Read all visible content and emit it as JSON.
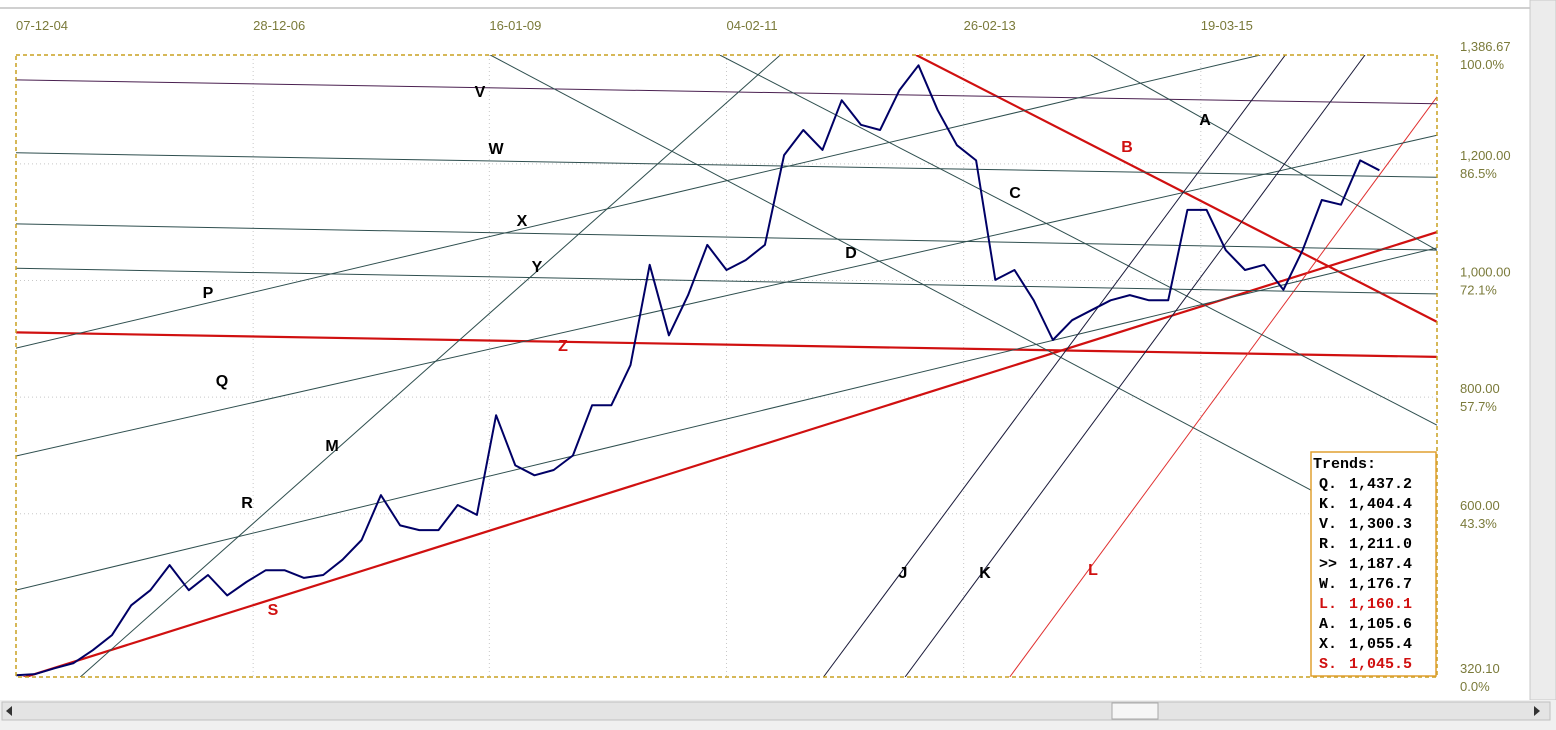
{
  "chart_data": {
    "type": "line",
    "xlim": [
      0,
      148
    ],
    "xticks": [
      {
        "value": 0,
        "label": "07-12-04"
      },
      {
        "value": 24.7,
        "label": "28-12-06"
      },
      {
        "value": 49.3,
        "label": "16-01-09"
      },
      {
        "value": 74,
        "label": "04-02-11"
      },
      {
        "value": 98.7,
        "label": "26-02-13"
      },
      {
        "value": 123.4,
        "label": "19-03-15"
      }
    ],
    "ylim": [
      320.1,
      1386.67
    ],
    "yticks": [
      {
        "value": 1386.67,
        "label": "1,386.67"
      },
      {
        "value": 1200,
        "label": "1,200.00"
      },
      {
        "value": 1000,
        "label": "1,000.00"
      },
      {
        "value": 800,
        "label": "800.00"
      },
      {
        "value": 600,
        "label": "600.00"
      },
      {
        "value": 320.1,
        "label": "320.10"
      }
    ],
    "ytick_percent": [
      "100.0%",
      "86.5%",
      "72.1%",
      "57.7%",
      "43.3%",
      "0.0%"
    ],
    "grid": true,
    "color": "#000066",
    "x": [
      0,
      2,
      4,
      6,
      8,
      10,
      12,
      14,
      16,
      18,
      20,
      22,
      24,
      26,
      28,
      30,
      32,
      34,
      36,
      38,
      40,
      42,
      44,
      46,
      48,
      50,
      52,
      54,
      56,
      58,
      60,
      62,
      64,
      66,
      68,
      70,
      72,
      74,
      76,
      78,
      80,
      82,
      84,
      86,
      88,
      90,
      92,
      94,
      96,
      98,
      100,
      102,
      104,
      106,
      108,
      110,
      112,
      114,
      116,
      118,
      120,
      122,
      124,
      126,
      128,
      130,
      132,
      134,
      136,
      138,
      140,
      142
    ],
    "values": [
      323,
      325,
      335,
      344,
      366,
      392,
      443,
      469,
      512,
      469,
      495,
      460,
      483,
      503,
      503,
      490,
      495,
      521,
      555,
      632,
      580,
      572,
      572,
      615,
      598,
      769,
      683,
      666,
      675,
      700,
      786,
      786,
      855,
      1027,
      906,
      975,
      1061,
      1018,
      1035,
      1061,
      1215,
      1258,
      1224,
      1309,
      1267,
      1258,
      1326,
      1369,
      1292,
      1232,
      1206,
      1001,
      1018,
      966,
      898,
      932,
      949,
      966,
      975,
      966,
      966,
      1121,
      1121,
      1052,
      1018,
      1027,
      984,
      1052,
      1138,
      1130,
      1206,
      1189
    ],
    "trendlines": [
      {
        "label": "S",
        "color": "#d01010",
        "points": [
          [
            0,
            315
          ],
          [
            148,
            1083
          ]
        ]
      },
      {
        "label": "Z",
        "color": "#d01010",
        "points": [
          [
            0,
            911
          ],
          [
            148,
            869
          ]
        ]
      },
      {
        "label": "B",
        "color": "#d01010",
        "points": [
          [
            93.75,
            1386.67
          ],
          [
            148,
            929
          ]
        ]
      },
      {
        "label": "L",
        "color": "#e03030",
        "points": [
          [
            103.5,
            320.1
          ],
          [
            148,
            1315
          ]
        ]
      },
      {
        "label": "V",
        "color": "#4a2050",
        "points": [
          [
            0,
            1344
          ],
          [
            148,
            1303
          ]
        ]
      },
      {
        "label": "W",
        "color": "#2f4f4f",
        "points": [
          [
            0,
            1219
          ],
          [
            148,
            1177
          ]
        ]
      },
      {
        "label": "X",
        "color": "#2f4f4f",
        "points": [
          [
            0,
            1097
          ],
          [
            148,
            1052
          ]
        ]
      },
      {
        "label": "Y",
        "color": "#2f4f4f",
        "points": [
          [
            0,
            1021
          ],
          [
            148,
            977
          ]
        ]
      },
      {
        "label": "P",
        "color": "#2f4f4f",
        "points": [
          [
            0,
            884
          ],
          [
            129.6,
            1386.67
          ]
        ]
      },
      {
        "label": "Q",
        "color": "#2f4f4f",
        "points": [
          [
            0,
            699
          ],
          [
            148,
            1249
          ]
        ]
      },
      {
        "label": "R",
        "color": "#2f4f4f",
        "points": [
          [
            0,
            469
          ],
          [
            148,
            1056
          ]
        ]
      },
      {
        "label": "M",
        "color": "#2f4f4f",
        "points": [
          [
            6.7,
            320.1
          ],
          [
            79.6,
            1386.67
          ]
        ]
      },
      {
        "label": "D",
        "color": "#2f4f4f",
        "points": [
          [
            49.4,
            1386.67
          ],
          [
            148,
            526
          ]
        ]
      },
      {
        "label": "C",
        "color": "#2f4f4f",
        "points": [
          [
            73.3,
            1386.67
          ],
          [
            148,
            752
          ]
        ]
      },
      {
        "label": "A",
        "color": "#2f4f4f",
        "points": [
          [
            111.9,
            1386.67
          ],
          [
            148,
            1052
          ]
        ]
      },
      {
        "label": "J",
        "color": "#1a1a3a",
        "points": [
          [
            84.1,
            320.1
          ],
          [
            132.2,
            1386.67
          ]
        ]
      },
      {
        "label": "K",
        "color": "#1a1a3a",
        "points": [
          [
            92.6,
            320.1
          ],
          [
            140.5,
            1386.67
          ]
        ]
      }
    ],
    "trends": {
      "title": "Trends:",
      "rows": [
        {
          "key": "Q.",
          "value": "1,437.2",
          "color": "#000000"
        },
        {
          "key": "K.",
          "value": "1,404.4",
          "color": "#000000"
        },
        {
          "key": "V.",
          "value": "1,300.3",
          "color": "#000000"
        },
        {
          "key": "R.",
          "value": "1,211.0",
          "color": "#000000"
        },
        {
          "key": ">>",
          "value": "1,187.4",
          "color": "#000000"
        },
        {
          "key": "W.",
          "value": "1,176.7",
          "color": "#000000"
        },
        {
          "key": "L.",
          "value": "1,160.1",
          "color": "#d01010"
        },
        {
          "key": "A.",
          "value": "1,105.6",
          "color": "#000000"
        },
        {
          "key": "X.",
          "value": "1,055.4",
          "color": "#000000"
        },
        {
          "key": "S.",
          "value": "1,045.5",
          "color": "#d01010"
        }
      ]
    }
  }
}
